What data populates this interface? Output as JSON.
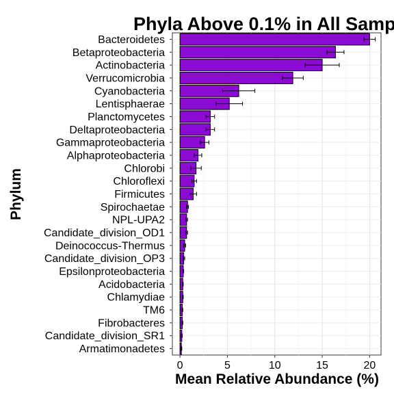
{
  "chart_data": {
    "type": "bar",
    "orientation": "horizontal",
    "title": "Phyla Above 0.1% in All Samp",
    "xlabel": "Mean Relative Abundance (%)",
    "ylabel": "Phylum",
    "xlim": [
      -0.8,
      21.2
    ],
    "xticks": [
      0,
      5,
      10,
      15,
      20
    ],
    "grid": true,
    "bar_color": "#8b0bd2",
    "bar_outline_color": "#000000",
    "categories": [
      "Bacteroidetes",
      "Betaproteobacteria",
      "Actinobacteria",
      "Verrucomicrobia",
      "Cyanobacteria",
      "Lentisphaerae",
      "Planctomycetes",
      "Deltaproteobacteria",
      "Gammaproteobacteria",
      "Alphaproteobacteria",
      "Chlorobi",
      "Chloroflexi",
      "Firmicutes",
      "Spirochaetae",
      "NPL-UPA2",
      "Candidate_division_OD1",
      "Deinococcus-Thermus",
      "Candidate_division_OP3",
      "Epsilonproteobacteria",
      "Acidobacteria",
      "Chlamydiae",
      "TM6",
      "Fibrobacteres",
      "Candidate_division_SR1",
      "Armatimonadetes"
    ],
    "values": [
      20.0,
      16.4,
      15.0,
      11.9,
      6.2,
      5.2,
      3.2,
      3.2,
      2.6,
      1.9,
      1.7,
      1.5,
      1.4,
      0.8,
      0.7,
      0.7,
      0.5,
      0.4,
      0.35,
      0.3,
      0.3,
      0.25,
      0.25,
      0.2,
      0.15
    ],
    "errors": [
      0.6,
      0.9,
      1.8,
      1.1,
      1.7,
      1.4,
      0.45,
      0.45,
      0.45,
      0.4,
      0.55,
      0.25,
      0.35,
      0.1,
      0.1,
      0.1,
      0.1,
      0.1,
      0.05,
      0.05,
      0.05,
      0.05,
      0.05,
      0.05,
      0.05
    ]
  }
}
